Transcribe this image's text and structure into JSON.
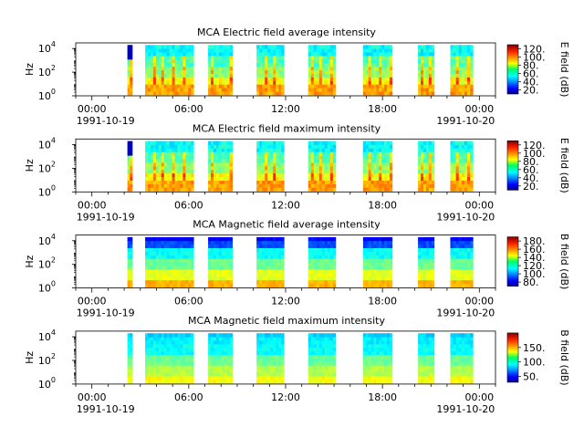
{
  "chart_data": [
    {
      "type": "heatmap",
      "title": "MCA  Electric field average intensity",
      "ylabel": "Hz",
      "yscale": "log",
      "ylim": [
        1,
        30000
      ],
      "ytick_labels": [
        "10",
        "10",
        "10"
      ],
      "ytick_exponents": [
        "0",
        "2",
        "4"
      ],
      "xtick_labels": [
        "00:00",
        "06:00",
        "12:00",
        "18:00",
        "00:00"
      ],
      "x_start_label": "1991-10-19",
      "x_end_label": "1991-10-20",
      "xlim_hours": [
        -1,
        25
      ],
      "colorbar": {
        "label": "E field (dB)",
        "range": [
          10,
          130
        ],
        "tick_labels": [
          "20.",
          "40.",
          "60.",
          "80.",
          "100.",
          "120."
        ]
      },
      "data_intervals_hours": [
        [
          2.2,
          2.5
        ],
        [
          3.3,
          6.3
        ],
        [
          7.2,
          8.7
        ],
        [
          10.2,
          11.9
        ],
        [
          13.4,
          15.1
        ],
        [
          16.8,
          18.6
        ],
        [
          20.2,
          21.2
        ],
        [
          22.2,
          23.6
        ]
      ],
      "profile": "electric"
    },
    {
      "type": "heatmap",
      "title": "MCA  Electric field maximum intensity",
      "ylabel": "Hz",
      "yscale": "log",
      "ylim": [
        1,
        30000
      ],
      "ytick_labels": [
        "10",
        "10",
        "10"
      ],
      "ytick_exponents": [
        "0",
        "2",
        "4"
      ],
      "xtick_labels": [
        "00:00",
        "06:00",
        "12:00",
        "18:00",
        "00:00"
      ],
      "x_start_label": "1991-10-19",
      "x_end_label": "1991-10-20",
      "xlim_hours": [
        -1,
        25
      ],
      "colorbar": {
        "label": "E field (dB)",
        "range": [
          10,
          130
        ],
        "tick_labels": [
          "20.",
          "40.",
          "60.",
          "80.",
          "100.",
          "120."
        ]
      },
      "data_intervals_hours": [
        [
          2.2,
          2.5
        ],
        [
          3.3,
          6.3
        ],
        [
          7.2,
          8.7
        ],
        [
          10.2,
          11.9
        ],
        [
          13.4,
          15.1
        ],
        [
          16.8,
          18.6
        ],
        [
          20.2,
          21.2
        ],
        [
          22.2,
          23.6
        ]
      ],
      "profile": "electric"
    },
    {
      "type": "heatmap",
      "title": "MCA  Magnetic field average intensity",
      "ylabel": "Hz",
      "yscale": "log",
      "ylim": [
        1,
        30000
      ],
      "ytick_labels": [
        "10",
        "10",
        "10"
      ],
      "ytick_exponents": [
        "0",
        "2",
        "4"
      ],
      "xtick_labels": [
        "00:00",
        "06:00",
        "12:00",
        "18:00",
        "00:00"
      ],
      "x_start_label": "1991-10-19",
      "x_end_label": "1991-10-20",
      "xlim_hours": [
        -1,
        25
      ],
      "colorbar": {
        "label": "B field (dB)",
        "range": [
          70,
          190
        ],
        "tick_labels": [
          "80.",
          "100.",
          "120.",
          "140.",
          "160.",
          "180."
        ]
      },
      "data_intervals_hours": [
        [
          2.2,
          2.5
        ],
        [
          3.3,
          6.3
        ],
        [
          7.2,
          8.7
        ],
        [
          10.2,
          11.9
        ],
        [
          13.4,
          15.1
        ],
        [
          16.8,
          18.6
        ],
        [
          20.2,
          21.2
        ],
        [
          22.2,
          23.6
        ]
      ],
      "profile": "magnetic"
    },
    {
      "type": "heatmap",
      "title": "MCA  Magnetic field maximum intensity",
      "ylabel": "Hz",
      "yscale": "log",
      "ylim": [
        1,
        30000
      ],
      "ytick_labels": [
        "10",
        "10",
        "10"
      ],
      "ytick_exponents": [
        "0",
        "2",
        "4"
      ],
      "xtick_labels": [
        "00:00",
        "06:00",
        "12:00",
        "18:00",
        "00:00"
      ],
      "x_start_label": "1991-10-19",
      "x_end_label": "1991-10-20",
      "xlim_hours": [
        -1,
        25
      ],
      "colorbar": {
        "label": "B field (dB)",
        "range": [
          30,
          200
        ],
        "tick_labels": [
          "50.",
          "100.",
          "150."
        ]
      },
      "data_intervals_hours": [
        [
          2.2,
          2.5
        ],
        [
          3.3,
          6.3
        ],
        [
          7.2,
          8.7
        ],
        [
          10.2,
          11.9
        ],
        [
          13.4,
          15.1
        ],
        [
          16.8,
          18.6
        ],
        [
          20.2,
          21.2
        ],
        [
          22.2,
          23.6
        ]
      ],
      "profile": "magnetic"
    }
  ]
}
